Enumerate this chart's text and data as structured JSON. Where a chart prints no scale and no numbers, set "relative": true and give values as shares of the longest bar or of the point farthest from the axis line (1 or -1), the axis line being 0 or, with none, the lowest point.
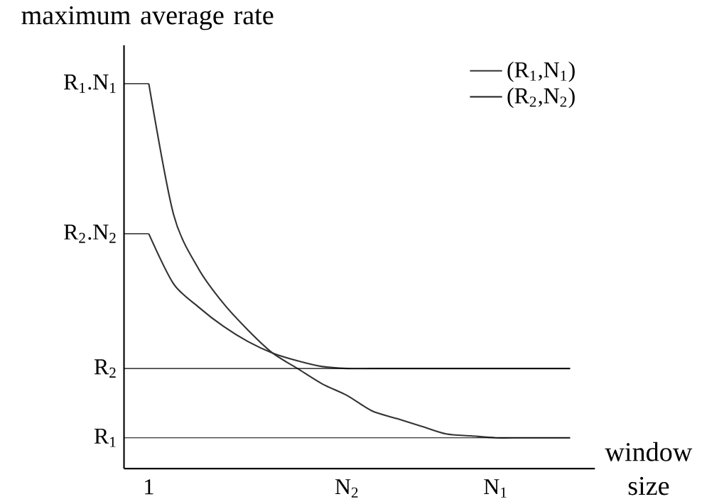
{
  "chart_data": {
    "type": "line",
    "xlabel": "window size",
    "ylabel": "maximum average rate",
    "relative": true,
    "categories": [
      "1",
      null,
      null,
      null,
      null,
      null,
      null,
      null,
      "N$_{2}$",
      null,
      null,
      null,
      null,
      null,
      "N$_{1}$",
      null,
      null,
      null
    ],
    "ref_lines": [
      {
        "axis": "y",
        "value": 0.08,
        "label": "R$_{1}$"
      },
      {
        "axis": "y",
        "value": 0.26,
        "label": "R$_{2}$"
      },
      {
        "axis": "y",
        "value": 0.61,
        "label": "R$_{2}$.N$_{2}$"
      },
      {
        "axis": "y",
        "value": 1,
        "label": "R$_{1}$.N$_{1}$"
      }
    ],
    "legend": "top right",
    "marker": "none",
    "series": [
      {
        "name": "(R$_{1}$,N$_{1}$)",
        "color": "#333333",
        "values": [
          1,
          0.66,
          0.52,
          0.43,
          0.36,
          0.3,
          0.26,
          0.22,
          0.19,
          0.15,
          0.13,
          0.11,
          0.09,
          0.085,
          0.08,
          0.08,
          0.08,
          0.08
        ]
      },
      {
        "name": "(R$_{2}$,N$_{2}$)",
        "color": "#333333",
        "values": [
          0.61,
          0.48,
          0.42,
          0.37,
          0.33,
          0.3,
          0.28,
          0.265,
          0.26,
          0.26,
          0.26,
          0.26,
          0.26,
          0.26,
          0.26,
          0.26,
          0.26,
          0.26
        ]
      }
    ]
  }
}
